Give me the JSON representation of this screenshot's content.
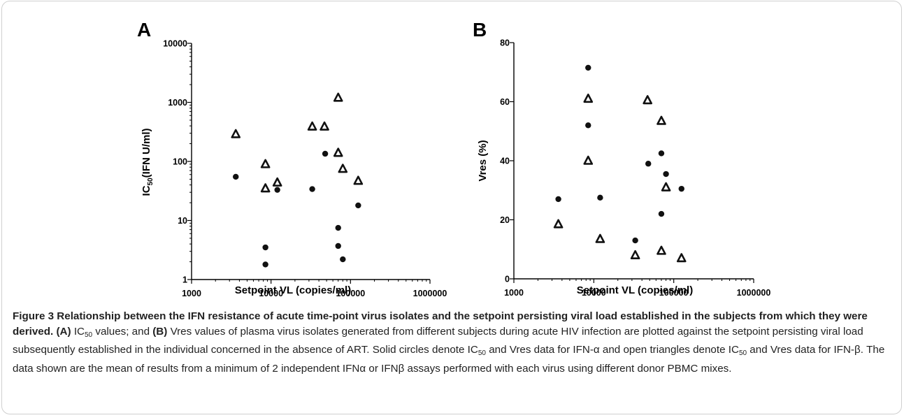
{
  "chart_data": [
    {
      "panel_label": "A",
      "type": "scatter",
      "ylabel_main": "IC",
      "ylabel_sub": "50",
      "ylabel_rest": "(IFN U/ml)",
      "xlabel": "Setpoint VL (copies/ml)",
      "xscale": "log",
      "yscale": "log",
      "xlim": [
        1000,
        1000000
      ],
      "ylim": [
        1,
        10000
      ],
      "x_ticks": [
        "1000",
        "10000",
        "100000",
        "1000000"
      ],
      "y_ticks": [
        "1",
        "10",
        "100",
        "1000",
        "10000"
      ],
      "series": [
        {
          "marker": "circle",
          "points": [
            [
              3600,
              55
            ],
            [
              8500,
              3.5
            ],
            [
              8500,
              1.8
            ],
            [
              12000,
              33
            ],
            [
              33000,
              34
            ],
            [
              48000,
              135
            ],
            [
              70000,
              7.5
            ],
            [
              70000,
              3.7
            ],
            [
              80000,
              2.2
            ],
            [
              125000,
              18
            ]
          ]
        },
        {
          "marker": "triangle",
          "points": [
            [
              3600,
              290
            ],
            [
              8500,
              90
            ],
            [
              8500,
              35
            ],
            [
              12000,
              44
            ],
            [
              33000,
              390
            ],
            [
              47000,
              390
            ],
            [
              70000,
              1200
            ],
            [
              70000,
              140
            ],
            [
              80000,
              75
            ],
            [
              125000,
              47
            ]
          ]
        }
      ]
    },
    {
      "panel_label": "B",
      "type": "scatter",
      "ylabel_main": "Vres (%)",
      "xlabel": "Setpoint VL (copies/ml)",
      "xscale": "log",
      "yscale": "linear",
      "xlim": [
        1000,
        1000000
      ],
      "ylim": [
        0,
        80
      ],
      "x_ticks": [
        "1000",
        "10000",
        "100000",
        "1000000"
      ],
      "y_ticks": [
        "0",
        "20",
        "40",
        "60",
        "80"
      ],
      "series": [
        {
          "marker": "circle",
          "points": [
            [
              3600,
              27
            ],
            [
              8500,
              71.5
            ],
            [
              8500,
              52
            ],
            [
              12000,
              27.5
            ],
            [
              33000,
              13
            ],
            [
              48000,
              39
            ],
            [
              70000,
              42.5
            ],
            [
              70000,
              22
            ],
            [
              80000,
              35.5
            ],
            [
              125000,
              30.5
            ]
          ]
        },
        {
          "marker": "triangle",
          "points": [
            [
              3600,
              18.5
            ],
            [
              8500,
              61
            ],
            [
              8500,
              40
            ],
            [
              12000,
              13.5
            ],
            [
              33000,
              8
            ],
            [
              47000,
              60.5
            ],
            [
              70000,
              53.5
            ],
            [
              70000,
              9.5
            ],
            [
              80000,
              31
            ],
            [
              125000,
              7
            ]
          ]
        }
      ]
    }
  ],
  "caption": {
    "title": "Figure 3 Relationship between the IFN resistance of acute time-point virus isolates and the setpoint persisting viral load established in the subjects from which they were derived.",
    "a_label": "(A)",
    "ic": "IC",
    "ic_sub": "50",
    "t1": " values; and ",
    "b_label": "(B)",
    "t2": " Vres values of plasma virus isolates generated from different subjects during acute HIV infection are plotted against the setpoint persisting viral load subsequently established in the individual concerned in the absence of ART. Solid circles denote ",
    "t3": " and Vres data for IFN-α and open triangles denote ",
    "t4": " and Vres data for IFN-β. The data shown are the mean of results from a minimum of 2 independent IFNα or IFNβ assays performed with each virus using different donor PBMC mixes."
  }
}
